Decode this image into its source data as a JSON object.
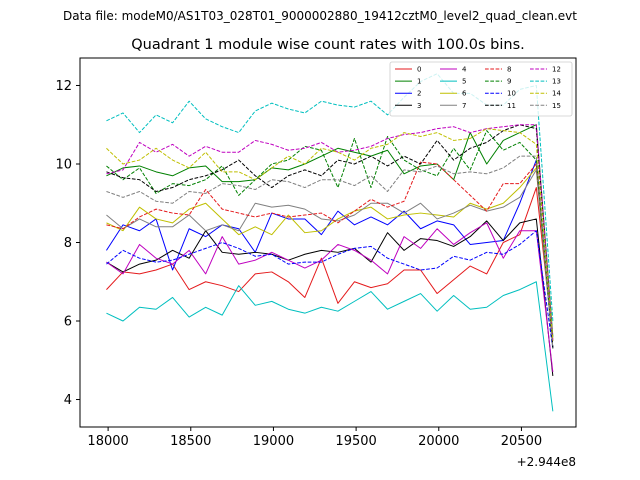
{
  "chart_data": {
    "type": "line",
    "suptitle": "Data file: modeM0/AS1T03_028T01_9000002880_19412cztM0_level2_quad_clean.evt",
    "title": "Quadrant 1 module wise count rates with 100.0s bins.",
    "xlabel": "",
    "ylabel": "",
    "x_offset_label": "+2.944e8",
    "xlim": [
      17830,
      20830
    ],
    "ylim": [
      3.3,
      12.7
    ],
    "x_ticks": [
      18000,
      18500,
      19000,
      19500,
      20000,
      20500
    ],
    "x_tick_labels": [
      "18000",
      "18500",
      "19000",
      "19500",
      "20000",
      "20500"
    ],
    "y_ticks": [
      4,
      6,
      8,
      10,
      12
    ],
    "y_tick_labels": [
      "4",
      "6",
      "8",
      "10",
      "12"
    ],
    "legend_position": "upper-right",
    "legend_columns": 4,
    "x": [
      17990,
      18090,
      18190,
      18290,
      18390,
      18490,
      18590,
      18690,
      18790,
      18890,
      18990,
      19090,
      19190,
      19290,
      19390,
      19490,
      19590,
      19690,
      19790,
      19890,
      19990,
      20090,
      20190,
      20290,
      20390,
      20490,
      20590,
      20690
    ],
    "series": [
      {
        "name": "0",
        "color": "#e41a1c",
        "dash": "solid",
        "values": [
          6.8,
          7.25,
          7.2,
          7.3,
          7.45,
          6.8,
          7.0,
          6.9,
          6.75,
          7.2,
          7.25,
          7.0,
          6.6,
          7.6,
          6.45,
          7.0,
          6.85,
          6.95,
          7.3,
          7.3,
          6.7,
          7.05,
          7.4,
          7.2,
          8.0,
          8.2,
          9.4,
          5.5
        ]
      },
      {
        "name": "1",
        "color": "#008000",
        "dash": "solid",
        "values": [
          9.7,
          9.9,
          9.95,
          9.8,
          9.7,
          9.9,
          9.95,
          9.55,
          9.55,
          9.6,
          9.9,
          9.85,
          10.0,
          10.2,
          10.4,
          10.3,
          10.2,
          10.35,
          9.75,
          9.95,
          10.0,
          9.6,
          10.8,
          10.0,
          10.6,
          10.8,
          11.0,
          5.6
        ]
      },
      {
        "name": "2",
        "color": "#0000ff",
        "dash": "solid",
        "values": [
          7.8,
          8.45,
          8.3,
          8.6,
          7.3,
          8.35,
          8.15,
          8.45,
          8.35,
          7.75,
          8.75,
          8.6,
          8.6,
          8.2,
          8.8,
          8.45,
          8.65,
          8.45,
          8.8,
          8.35,
          8.55,
          8.45,
          7.95,
          8.0,
          8.05,
          9.0,
          10.1,
          5.3
        ]
      },
      {
        "name": "3",
        "color": "#000000",
        "dash": "solid",
        "values": [
          7.5,
          7.25,
          7.45,
          7.55,
          7.8,
          7.6,
          8.3,
          7.75,
          7.7,
          7.75,
          7.7,
          7.55,
          7.7,
          7.8,
          7.75,
          7.85,
          7.5,
          8.25,
          7.8,
          8.1,
          8.05,
          7.9,
          8.15,
          8.55,
          8.05,
          8.5,
          8.6,
          4.6
        ]
      },
      {
        "name": "4",
        "color": "#bf00bf",
        "dash": "solid",
        "values": [
          7.5,
          7.2,
          7.95,
          7.6,
          7.45,
          7.8,
          7.2,
          8.15,
          7.45,
          7.55,
          7.75,
          7.55,
          7.35,
          7.55,
          7.95,
          7.8,
          7.55,
          7.2,
          8.15,
          7.85,
          8.35,
          7.95,
          8.25,
          8.5,
          7.6,
          8.3,
          8.3,
          4.7
        ]
      },
      {
        "name": "5",
        "color": "#00bfbf",
        "dash": "solid",
        "values": [
          6.2,
          6.0,
          6.35,
          6.3,
          6.6,
          6.1,
          6.35,
          6.15,
          6.9,
          6.4,
          6.5,
          6.3,
          6.2,
          6.35,
          6.25,
          6.5,
          6.75,
          6.3,
          6.5,
          6.7,
          6.25,
          6.65,
          6.3,
          6.35,
          6.65,
          6.8,
          7.0,
          3.7
        ]
      },
      {
        "name": "6",
        "color": "#bfbf00",
        "dash": "solid",
        "values": [
          8.5,
          8.3,
          8.9,
          8.6,
          8.5,
          8.85,
          9.0,
          8.6,
          8.2,
          8.4,
          8.2,
          8.7,
          8.25,
          8.3,
          8.6,
          8.8,
          8.9,
          8.6,
          8.7,
          8.75,
          8.7,
          8.65,
          9.0,
          8.85,
          9.0,
          9.4,
          9.9,
          5.3
        ]
      },
      {
        "name": "7",
        "color": "#808080",
        "dash": "solid",
        "values": [
          8.7,
          8.35,
          8.6,
          8.4,
          8.4,
          8.7,
          8.3,
          8.45,
          8.3,
          9.0,
          8.9,
          8.95,
          8.85,
          8.6,
          8.55,
          8.7,
          9.0,
          9.0,
          8.75,
          9.0,
          8.6,
          8.75,
          8.95,
          8.8,
          8.9,
          9.15,
          9.85,
          5.3
        ]
      },
      {
        "name": "8",
        "color": "#e41a1c",
        "dash": "dashed",
        "values": [
          8.45,
          8.35,
          8.65,
          8.85,
          8.75,
          8.7,
          9.35,
          8.85,
          8.75,
          8.65,
          8.75,
          8.65,
          8.7,
          8.75,
          8.5,
          8.8,
          9.1,
          8.9,
          9.05,
          10.05,
          10.0,
          9.6,
          9.2,
          8.8,
          9.5,
          9.5,
          10.0,
          5.5
        ]
      },
      {
        "name": "9",
        "color": "#008000",
        "dash": "dashed",
        "values": [
          9.95,
          9.6,
          9.9,
          9.25,
          9.5,
          9.45,
          9.6,
          9.95,
          9.2,
          9.6,
          10.0,
          10.1,
          10.45,
          10.35,
          9.4,
          10.65,
          9.4,
          10.7,
          10.1,
          9.85,
          9.7,
          10.4,
          9.85,
          10.85,
          10.35,
          10.55,
          10.1,
          5.3
        ]
      },
      {
        "name": "10",
        "color": "#0000ff",
        "dash": "dashed",
        "values": [
          7.45,
          7.8,
          7.6,
          7.5,
          7.55,
          7.7,
          7.85,
          8.0,
          7.85,
          7.65,
          7.7,
          7.45,
          7.5,
          7.5,
          7.7,
          7.85,
          7.9,
          7.6,
          7.45,
          7.3,
          7.35,
          7.65,
          7.55,
          7.75,
          7.7,
          7.95,
          8.3,
          5.3
        ]
      },
      {
        "name": "11",
        "color": "#000000",
        "dash": "dashed",
        "values": [
          9.8,
          9.65,
          9.6,
          9.3,
          9.4,
          9.6,
          9.7,
          9.85,
          10.1,
          9.7,
          9.4,
          9.7,
          9.85,
          9.7,
          10.1,
          10.0,
          10.2,
          9.95,
          10.2,
          10.0,
          10.6,
          10.1,
          10.4,
          10.55,
          10.85,
          11.0,
          10.9,
          5.3
        ]
      },
      {
        "name": "12",
        "color": "#bf00bf",
        "dash": "dashed",
        "values": [
          9.75,
          9.85,
          10.55,
          10.3,
          10.5,
          10.2,
          10.45,
          10.3,
          10.3,
          10.6,
          10.5,
          10.35,
          10.4,
          10.55,
          10.3,
          10.35,
          10.45,
          10.65,
          10.75,
          10.8,
          10.9,
          10.95,
          10.8,
          10.9,
          10.95,
          11.0,
          11.0,
          5.5
        ]
      },
      {
        "name": "13",
        "color": "#00bfbf",
        "dash": "dashed",
        "values": [
          11.1,
          11.3,
          10.8,
          11.25,
          11.05,
          11.6,
          11.15,
          10.95,
          10.8,
          11.35,
          11.55,
          11.4,
          11.3,
          11.6,
          11.5,
          11.45,
          11.6,
          11.25,
          11.7,
          12.1,
          12.3,
          11.8,
          11.8,
          11.5,
          11.5,
          11.9,
          12.0,
          6.0
        ]
      },
      {
        "name": "14",
        "color": "#bfbf00",
        "dash": "dashed",
        "values": [
          10.4,
          10.0,
          10.1,
          10.4,
          10.1,
          9.9,
          10.3,
          9.8,
          9.8,
          9.6,
          9.9,
          10.2,
          10.0,
          10.4,
          10.3,
          10.1,
          10.4,
          10.5,
          10.8,
          10.7,
          10.8,
          10.6,
          10.65,
          10.9,
          10.85,
          10.8,
          10.5,
          5.5
        ]
      },
      {
        "name": "15",
        "color": "#808080",
        "dash": "dashed",
        "values": [
          9.3,
          9.15,
          9.3,
          9.05,
          9.0,
          9.3,
          9.25,
          9.5,
          9.45,
          9.35,
          9.6,
          9.55,
          9.4,
          9.6,
          9.6,
          9.45,
          9.7,
          9.3,
          9.85,
          9.8,
          9.95,
          9.75,
          9.8,
          9.75,
          9.9,
          10.2,
          10.2,
          5.3
        ]
      }
    ]
  }
}
